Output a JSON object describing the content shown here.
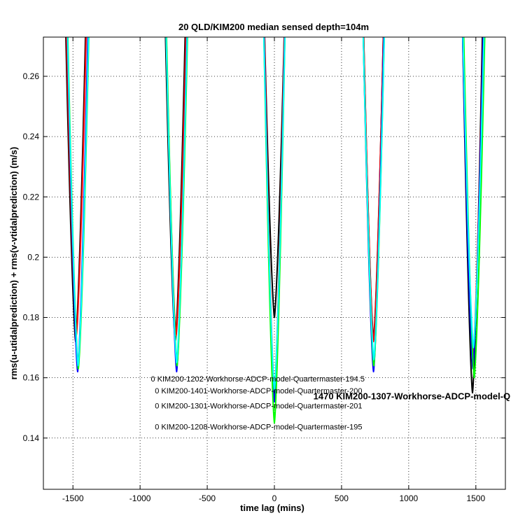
{
  "chart_data": {
    "type": "line",
    "title": "20 QLD/KIM200 median sensed depth=104m",
    "xlabel": "time lag (mins)",
    "ylabel": "rms(u-utidalprediction) + rms(v-vtidalprediction) (m/s)",
    "xlim": [
      -1720,
      1720
    ],
    "ylim": [
      0.123,
      0.273
    ],
    "grid": true,
    "x_ticks": [
      -1500,
      -1000,
      -500,
      0,
      500,
      1000,
      1500
    ],
    "x_tick_labels": [
      "-1500",
      "-1000",
      "-500",
      "0",
      "500",
      "1000",
      "1500"
    ],
    "y_ticks": [
      0.14,
      0.16,
      0.18,
      0.2,
      0.22,
      0.24,
      0.26
    ],
    "y_tick_labels": [
      "0.14",
      "0.16",
      "0.18",
      "0.2",
      "0.22",
      "0.24",
      "0.26"
    ],
    "series": [
      {
        "color": "#000000",
        "minima": [
          {
            "x": -1480,
            "y": 0.172
          },
          {
            "x": -738,
            "y": 0.172
          },
          {
            "x": 0,
            "y": 0.18
          },
          {
            "x": 738,
            "y": 0.173
          },
          {
            "x": 1475,
            "y": 0.155
          }
        ],
        "halfwidth": 75
      },
      {
        "color": "#ff0000",
        "minima": [
          {
            "x": -1475,
            "y": 0.174
          },
          {
            "x": -732,
            "y": 0.174
          },
          {
            "x": 0,
            "y": 0.155
          },
          {
            "x": 738,
            "y": 0.172
          },
          {
            "x": 1480,
            "y": 0.168
          }
        ],
        "halfwidth": 75
      },
      {
        "color": "#0000ff",
        "minima": [
          {
            "x": -1465,
            "y": 0.162
          },
          {
            "x": -728,
            "y": 0.162
          },
          {
            "x": 0,
            "y": 0.152
          },
          {
            "x": 738,
            "y": 0.162
          },
          {
            "x": 1478,
            "y": 0.163
          }
        ],
        "halfwidth": 78
      },
      {
        "color": "#00ff00",
        "minima": [
          {
            "x": -1460,
            "y": 0.163
          },
          {
            "x": -725,
            "y": 0.164
          },
          {
            "x": 0,
            "y": 0.145
          },
          {
            "x": 740,
            "y": 0.164
          },
          {
            "x": 1488,
            "y": 0.16
          }
        ],
        "halfwidth": 80
      },
      {
        "color": "#00ffff",
        "minima": [
          {
            "x": -1462,
            "y": 0.164
          },
          {
            "x": -728,
            "y": 0.165
          },
          {
            "x": 0,
            "y": 0.156
          },
          {
            "x": 740,
            "y": 0.166
          },
          {
            "x": 1482,
            "y": 0.17
          }
        ],
        "halfwidth": 80
      }
    ],
    "annotations": [
      {
        "text": "0 KIM200-1202-Workhorse-ADCP-model-Quartermaster-194.5",
        "x": -920,
        "y": 0.1588,
        "size": "small"
      },
      {
        "text": "0 KIM200-1401-Workhorse-ADCP-model-Quartermaster-200",
        "x": -890,
        "y": 0.1548,
        "size": "small"
      },
      {
        "text": "0 KIM200-1301-Workhorse-ADCP-model-Quartermaster-201",
        "x": -890,
        "y": 0.1498,
        "size": "small"
      },
      {
        "text": "0 KIM200-1208-Workhorse-ADCP-model-Quartermaster-195",
        "x": -890,
        "y": 0.1428,
        "size": "small"
      },
      {
        "text": "1470 KIM200-1307-Workhorse-ADCP-model-Q",
        "x": 290,
        "y": 0.1528,
        "size": "large"
      }
    ]
  }
}
